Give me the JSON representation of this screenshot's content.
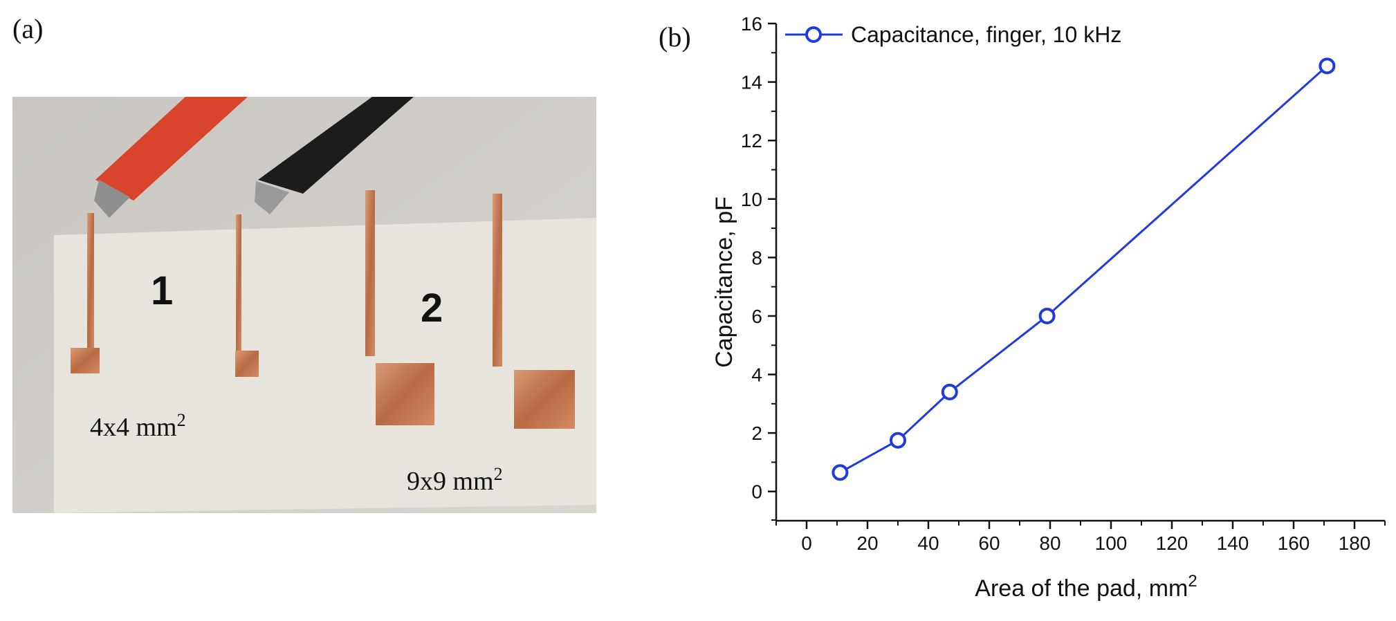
{
  "panels": {
    "a": {
      "label": "(a)",
      "small_pad_label": "4x4 mm",
      "large_pad_label": "9x9 mm",
      "superscript": "2",
      "handwritten_1": "1",
      "handwritten_2": "2"
    },
    "b": {
      "label": "(b)"
    }
  },
  "colors": {
    "series": "#1f3be0",
    "pad_copper": "#c97a52",
    "substrate": "#e6e3dc",
    "clip_red": "#d8442c"
  },
  "chart_data": {
    "type": "line",
    "title": "",
    "xlabel": "Area of the pad, mm",
    "xlabel_superscript": "2",
    "ylabel": "Capacitance, pF",
    "xlim": [
      -10,
      190
    ],
    "ylim": [
      -1,
      16
    ],
    "xticks": [
      0,
      20,
      40,
      60,
      80,
      100,
      120,
      140,
      160,
      180
    ],
    "yticks": [
      0,
      2,
      4,
      6,
      8,
      10,
      12,
      14,
      16
    ],
    "legend_position": "top-left",
    "series": [
      {
        "name": "Capacitance, finger, 10 kHz",
        "x": [
          11,
          30,
          47,
          79,
          171
        ],
        "y": [
          0.65,
          1.75,
          3.4,
          6.0,
          14.55
        ]
      }
    ]
  }
}
